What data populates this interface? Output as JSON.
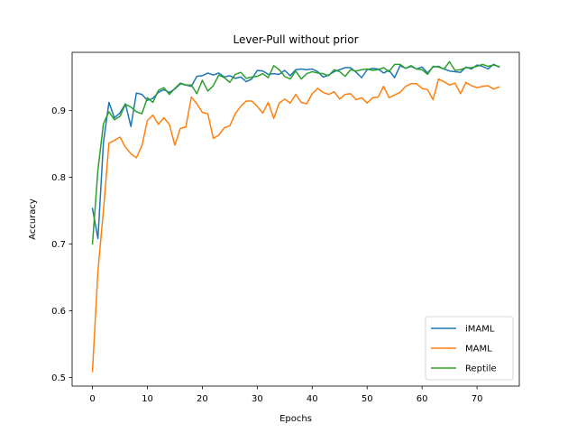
{
  "chart_data": {
    "type": "line",
    "title": "Lever-Pull without prior",
    "xlabel": "Epochs",
    "ylabel": "Accuracy",
    "xlim": [
      -3.7,
      77.7
    ],
    "ylim": [
      0.487,
      0.987
    ],
    "xticks": [
      0,
      10,
      20,
      30,
      40,
      50,
      60,
      70
    ],
    "xtick_labels": [
      "0",
      "10",
      "20",
      "30",
      "40",
      "50",
      "60",
      "70"
    ],
    "yticks": [
      0.5,
      0.6,
      0.7,
      0.8,
      0.9
    ],
    "ytick_labels": [
      "0.5",
      "0.6",
      "0.7",
      "0.8",
      "0.9"
    ],
    "grid": false,
    "legend_position": "lower-right",
    "x": [
      0,
      1,
      2,
      3,
      4,
      5,
      6,
      7,
      8,
      9,
      10,
      11,
      12,
      13,
      14,
      15,
      16,
      17,
      18,
      19,
      20,
      21,
      22,
      23,
      24,
      25,
      26,
      27,
      28,
      29,
      30,
      31,
      32,
      33,
      34,
      35,
      36,
      37,
      38,
      39,
      40,
      41,
      42,
      43,
      44,
      45,
      46,
      47,
      48,
      49,
      50,
      51,
      52,
      53,
      54,
      55,
      56,
      57,
      58,
      59,
      60,
      61,
      62,
      63,
      64,
      65,
      66,
      67,
      68,
      69,
      70,
      71,
      72,
      73,
      74
    ],
    "series": [
      {
        "name": "iMAML",
        "color": "#1f77b4",
        "values": [
          0.753,
          0.708,
          0.852,
          0.912,
          0.889,
          0.896,
          0.91,
          0.876,
          0.926,
          0.924,
          0.915,
          0.918,
          0.927,
          0.931,
          0.927,
          0.932,
          0.94,
          0.938,
          0.936,
          0.951,
          0.952,
          0.956,
          0.953,
          0.956,
          0.95,
          0.952,
          0.948,
          0.95,
          0.943,
          0.947,
          0.96,
          0.959,
          0.954,
          0.955,
          0.954,
          0.96,
          0.952,
          0.961,
          0.962,
          0.961,
          0.962,
          0.958,
          0.95,
          0.953,
          0.958,
          0.961,
          0.964,
          0.964,
          0.957,
          0.949,
          0.961,
          0.963,
          0.962,
          0.956,
          0.96,
          0.949,
          0.967,
          0.963,
          0.966,
          0.962,
          0.965,
          0.956,
          0.965,
          0.966,
          0.962,
          0.959,
          0.958,
          0.957,
          0.965,
          0.962,
          0.968,
          0.966,
          0.962,
          0.969,
          0.965
        ]
      },
      {
        "name": "MAML",
        "color": "#ff7f0e",
        "values": [
          0.509,
          0.66,
          0.75,
          0.851,
          0.855,
          0.86,
          0.845,
          0.835,
          0.829,
          0.847,
          0.885,
          0.893,
          0.879,
          0.889,
          0.879,
          0.848,
          0.873,
          0.875,
          0.92,
          0.91,
          0.897,
          0.895,
          0.858,
          0.863,
          0.874,
          0.877,
          0.895,
          0.906,
          0.914,
          0.914,
          0.906,
          0.896,
          0.912,
          0.888,
          0.911,
          0.917,
          0.911,
          0.924,
          0.912,
          0.91,
          0.925,
          0.933,
          0.927,
          0.924,
          0.928,
          0.917,
          0.924,
          0.925,
          0.916,
          0.919,
          0.911,
          0.919,
          0.92,
          0.936,
          0.919,
          0.923,
          0.927,
          0.936,
          0.94,
          0.94,
          0.933,
          0.931,
          0.916,
          0.947,
          0.943,
          0.938,
          0.941,
          0.925,
          0.942,
          0.937,
          0.934,
          0.936,
          0.937,
          0.932,
          0.935
        ]
      },
      {
        "name": "Reptile",
        "color": "#2ca02c",
        "values": [
          0.7,
          0.811,
          0.88,
          0.898,
          0.886,
          0.891,
          0.909,
          0.905,
          0.898,
          0.895,
          0.919,
          0.912,
          0.93,
          0.934,
          0.924,
          0.933,
          0.941,
          0.938,
          0.938,
          0.925,
          0.945,
          0.929,
          0.937,
          0.953,
          0.949,
          0.942,
          0.954,
          0.957,
          0.948,
          0.95,
          0.951,
          0.955,
          0.949,
          0.967,
          0.961,
          0.951,
          0.947,
          0.959,
          0.947,
          0.955,
          0.958,
          0.956,
          0.955,
          0.952,
          0.961,
          0.958,
          0.951,
          0.961,
          0.959,
          0.961,
          0.962,
          0.96,
          0.961,
          0.964,
          0.958,
          0.969,
          0.969,
          0.963,
          0.967,
          0.962,
          0.961,
          0.954,
          0.966,
          0.965,
          0.962,
          0.973,
          0.96,
          0.961,
          0.964,
          0.964,
          0.966,
          0.969,
          0.966,
          0.968,
          0.966
        ]
      }
    ]
  }
}
